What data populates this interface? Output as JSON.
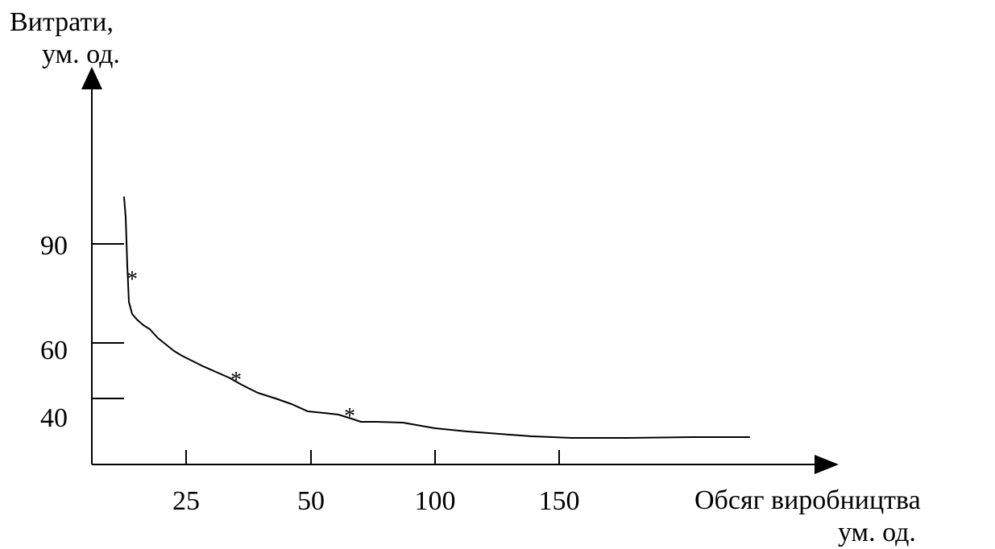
{
  "chart_data": {
    "type": "line",
    "title": "",
    "ylabel_lines": [
      "Витрати,",
      "ум. од."
    ],
    "xlabel_lines": [
      "Обсяг виробництва",
      "ум. од."
    ],
    "y_ticks": [
      "90",
      "60",
      "40"
    ],
    "x_ticks": [
      "25",
      "50",
      "100",
      "150"
    ],
    "marker_symbol": "*",
    "line_color": "#000000",
    "marker_color": "#8B5A2B",
    "grid": false,
    "legend": "none"
  }
}
